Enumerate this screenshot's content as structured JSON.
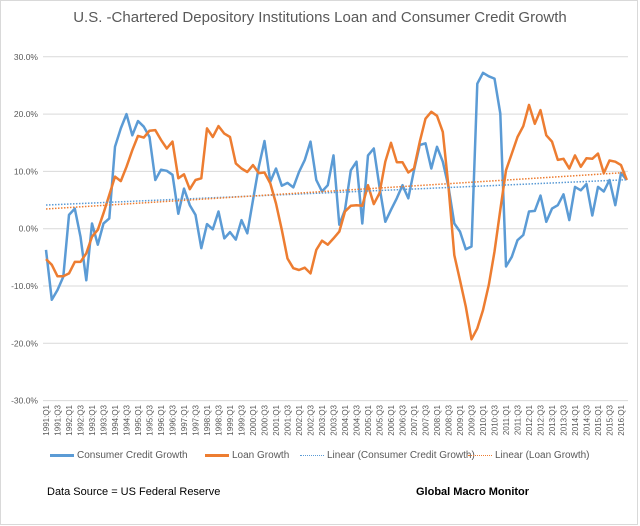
{
  "chart_data": {
    "type": "line",
    "title": "U.S. -Chartered Depository Institutions Loan and Consumer Credit Growth",
    "xlabel": "",
    "ylabel": "",
    "ylim": [
      -30,
      30
    ],
    "yticks": [
      "30.0%",
      "20.0%",
      "10.0%",
      "0.0%",
      "-10.0%",
      "-20.0%",
      "-30.0%"
    ],
    "ytick_values": [
      30,
      20,
      10,
      0,
      -10,
      -20,
      -30
    ],
    "grid": true,
    "legend_position": "bottom",
    "x_start": "1991:Q1",
    "x_end": "2016:Q2",
    "x_tick_labels": [
      "1991:Q1",
      "1991:Q3",
      "1992:Q1",
      "1992:Q3",
      "1993:Q1",
      "1993:Q3",
      "1994:Q1",
      "1994:Q3",
      "1995:Q1",
      "1995:Q3",
      "1996:Q1",
      "1996:Q3",
      "1997:Q1",
      "1997:Q3",
      "1998:Q1",
      "1998:Q3",
      "1999:Q1",
      "1999:Q3",
      "2000:Q1",
      "2000:Q3",
      "2001:Q1",
      "2001:Q3",
      "2002:Q1",
      "2002:Q3",
      "2003:Q1",
      "2003:Q3",
      "2004:Q1",
      "2004:Q3",
      "2005:Q1",
      "2005:Q3",
      "2006:Q1",
      "2006:Q3",
      "2007:Q1",
      "2007:Q3",
      "2008:Q1",
      "2008:Q3",
      "2009:Q1",
      "2009:Q3",
      "2010:Q1",
      "2010:Q3",
      "2011:Q1",
      "2011:Q3",
      "2012:Q1",
      "2012:Q3",
      "2013:Q1",
      "2013:Q3",
      "2014:Q1",
      "2014:Q3",
      "2015:Q1",
      "2015:Q3",
      "2016:Q1"
    ],
    "series": [
      {
        "name": "Consumer Credit Growth",
        "color": "#5b9bd5",
        "style": "solid",
        "values": [
          -3.7,
          -12.4,
          -10.7,
          -8.4,
          2.4,
          3.5,
          -1.4,
          -9.0,
          0.9,
          -2.8,
          0.9,
          1.8,
          14.3,
          17.5,
          20.0,
          16.3,
          18.8,
          17.8,
          16.0,
          8.5,
          10.3,
          10.1,
          9.4,
          2.6,
          7.0,
          4.1,
          2.4,
          -3.4,
          0.8,
          -0.1,
          3.0,
          -1.7,
          -0.6,
          -1.9,
          1.5,
          -0.8,
          5.0,
          10.8,
          15.3,
          8.2,
          10.5,
          7.5,
          8.0,
          7.2,
          9.9,
          12.0,
          15.2,
          8.5,
          6.5,
          7.6,
          12.8,
          0.7,
          3.3,
          10.2,
          11.7,
          0.9,
          12.8,
          14.0,
          7.3,
          1.2,
          3.3,
          5.3,
          7.6,
          5.3,
          10.2,
          14.6,
          14.9,
          10.5,
          14.3,
          11.7,
          7.3,
          0.9,
          -0.5,
          -3.6,
          -3.1,
          25.3,
          27.2,
          26.6,
          26.2,
          20.1,
          -6.6,
          -4.9,
          -2.0,
          -1.1,
          3.0,
          3.1,
          5.8,
          1.2,
          3.5,
          4.1,
          6.0,
          1.5,
          7.3,
          6.7,
          7.8,
          2.3,
          7.3,
          6.5,
          8.5,
          4.1,
          9.7,
          8.5
        ]
      },
      {
        "name": "Loan Growth",
        "color": "#ed7d31",
        "style": "solid",
        "values": [
          -5.3,
          -6.3,
          -8.3,
          -8.3,
          -7.8,
          -5.8,
          -5.8,
          -4.3,
          -1.4,
          -0.2,
          2.7,
          5.9,
          9.1,
          8.3,
          10.8,
          13.7,
          16.2,
          15.9,
          17.1,
          17.2,
          15.5,
          14.0,
          15.2,
          8.8,
          9.5,
          6.9,
          8.5,
          8.8,
          17.5,
          16.0,
          17.9,
          16.6,
          16.0,
          11.4,
          10.5,
          9.9,
          11.1,
          9.7,
          9.8,
          7.9,
          4.4,
          -0.2,
          -5.2,
          -6.9,
          -7.2,
          -6.8,
          -7.8,
          -3.7,
          -2.1,
          -2.8,
          -1.7,
          -0.5,
          3.0,
          4.0,
          4.1,
          4.0,
          7.6,
          4.3,
          6.2,
          11.7,
          15.0,
          11.6,
          11.6,
          9.8,
          10.5,
          15.2,
          19.2,
          20.4,
          19.7,
          16.9,
          7.3,
          -4.6,
          -9.0,
          -13.6,
          -19.3,
          -17.4,
          -14.2,
          -9.8,
          -4.0,
          3.3,
          10.2,
          13.1,
          16.0,
          17.9,
          21.6,
          18.3,
          20.7,
          16.3,
          15.2,
          12.0,
          12.2,
          10.5,
          12.8,
          10.8,
          12.3,
          12.2,
          13.1,
          9.7,
          11.9,
          11.7,
          11.1,
          8.5
        ]
      },
      {
        "name": "Linear (Consumer Credit Growth)",
        "color": "#5b9bd5",
        "style": "dotted",
        "trendline_of": 0
      },
      {
        "name": "Linear (Loan Growth)",
        "color": "#ed7d31",
        "style": "dotted",
        "trendline_of": 1
      }
    ]
  },
  "footer": {
    "source": "Data Source = US Federal Reserve",
    "brand": "Global Macro Monitor"
  }
}
